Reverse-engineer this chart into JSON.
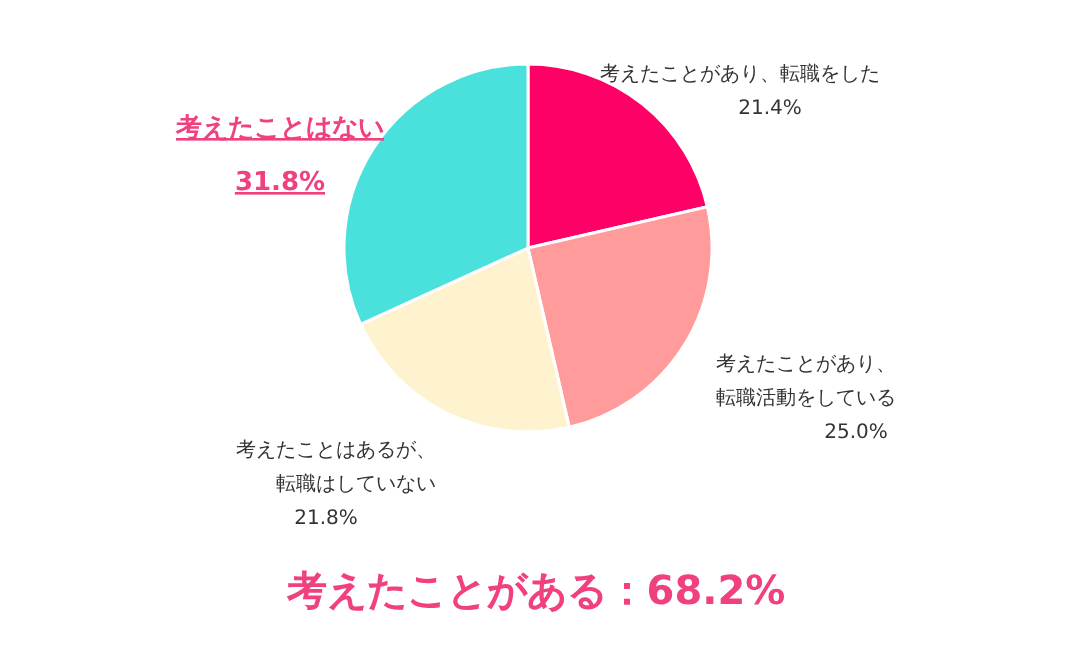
{
  "chart_data": {
    "type": "pie",
    "categories": [
      "考えたことがあり、転職をした",
      "考えたことがあり、転職活動をしている",
      "考えたことはあるが、転職はしていない",
      "考えたことはない"
    ],
    "values": [
      21.4,
      25.0,
      21.8,
      31.8
    ],
    "value_labels": [
      "21.4%",
      "25.0%",
      "21.8%",
      "31.8%"
    ],
    "colors": [
      "#ff0066",
      "#ff9b9b",
      "#fff3cf",
      "#4ae1dd"
    ],
    "annotations": [
      "考えたことがある：68.2%"
    ]
  }
}
